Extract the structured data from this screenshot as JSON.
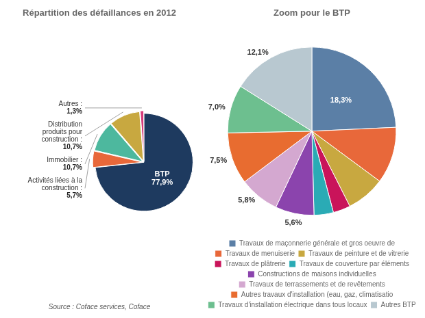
{
  "chart_data": [
    {
      "type": "pie",
      "title": "Répartition des défaillances en 2012",
      "categories": [
        "BTP",
        "Activités liées à la\nconstruction :",
        "Immobilier :",
        "Distribution\nproduits pour\nconstruction :",
        "Autres :"
      ],
      "values": [
        77.9,
        5.7,
        10.7,
        10.7,
        1.3
      ],
      "value_labels": [
        "77,9%",
        "5,7%",
        "10,7%",
        "10,7%",
        "1,3%"
      ],
      "colors": [
        "#1e3a5f",
        "#e8683a",
        "#4db89e",
        "#c8a840",
        "#d63a7a"
      ],
      "data_labels": true,
      "annotations": [
        "Source : Coface services, Coface"
      ]
    },
    {
      "type": "pie",
      "title": "Zoom pour le BTP",
      "categories": [
        "Travaux de maçonnerie générale et gros oeuvre de",
        "Travaux de menuiserie",
        "Travaux de peinture et de vitrerie",
        "Travaux de plâtrerie",
        "Travaux de couverture par éléments",
        "Constructions de maisons individuelles",
        "Travaux de terrassements et de revêtements",
        "Autres travaux d'installation (eau, gaz, climatisatio",
        "Travaux d'installation électrique dans tous locaux",
        "Autres BTP"
      ],
      "values": [
        18.3,
        8.2,
        5.6,
        2.5,
        2.8,
        5.6,
        5.8,
        7.5,
        7.0,
        12.1
      ],
      "value_labels": [
        "18,3%",
        null,
        null,
        null,
        null,
        "5,6%",
        "5,8%",
        "7,5%",
        "7,0%",
        "12,1%"
      ],
      "colors": [
        "#5b7fa6",
        "#e8683a",
        "#c8a840",
        "#c9145a",
        "#2aabb5",
        "#8b44ad",
        "#d4a8d0",
        "#e86c30",
        "#6dbf8f",
        "#b8c8d0"
      ],
      "data_labels": true,
      "legend": "bottom"
    }
  ]
}
